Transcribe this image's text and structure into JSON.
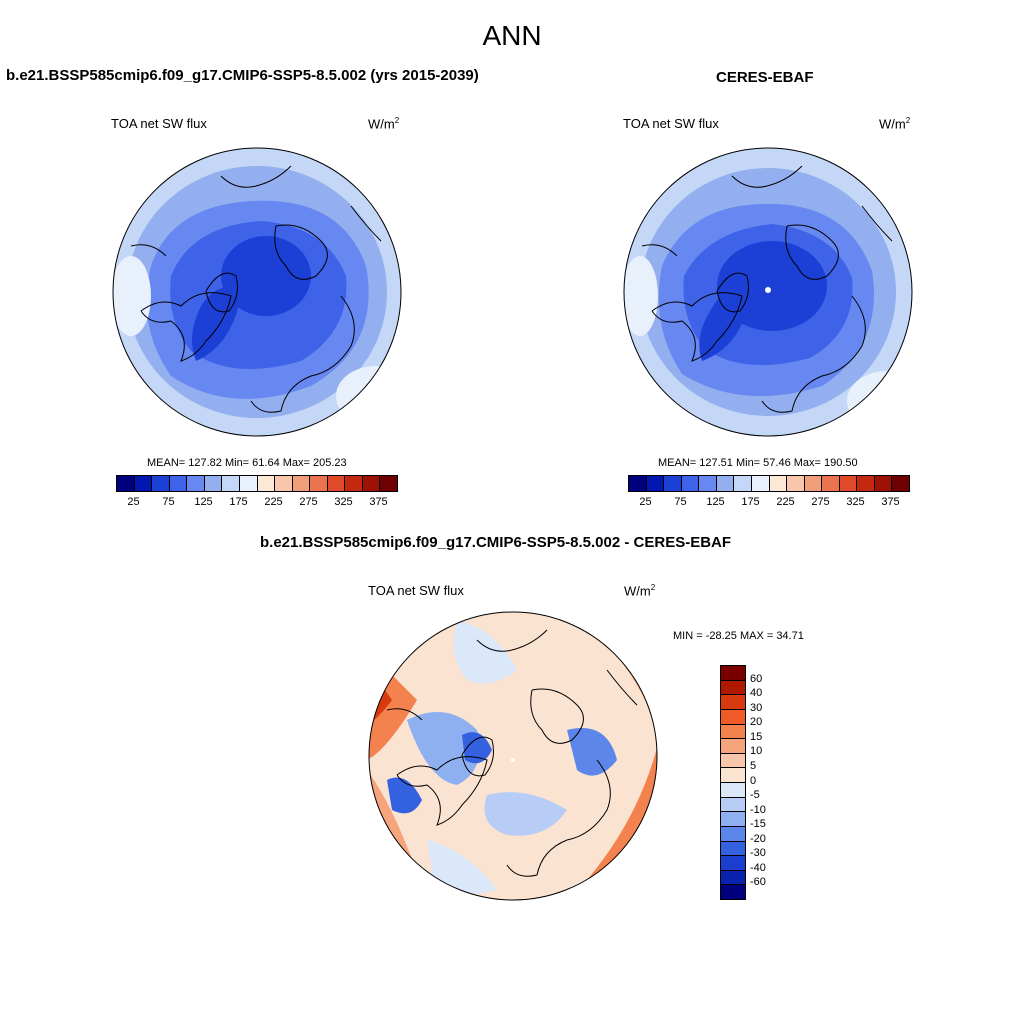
{
  "main_title": "ANN",
  "panels": [
    {
      "title": "b.e21.BSSP585cmip6.f09_g17.CMIP6-SSP5-8.5.002 (yrs 2015-2039)",
      "variable": "TOA net SW flux",
      "units_base": "W/m",
      "units_exp": "2",
      "stats": "MEAN= 127.82  Min=  61.64  Max= 205.23"
    },
    {
      "title": "CERES-EBAF",
      "variable": "TOA net SW flux",
      "units_base": "W/m",
      "units_exp": "2",
      "stats": "MEAN= 127.51  Min=  57.46  Max= 190.50"
    },
    {
      "title": "b.e21.BSSP585cmip6.f09_g17.CMIP6-SSP5-8.5.002 - CERES-EBAF",
      "variable": "TOA net SW flux",
      "units_base": "W/m",
      "units_exp": "2",
      "stats": "MIN = -28.25 MAX =  34.71"
    }
  ],
  "abs_colorbar": {
    "colors": [
      "#00007f",
      "#0018b0",
      "#1c3fd6",
      "#3e62e8",
      "#6688f0",
      "#94afef",
      "#c4d7f7",
      "#e8f0fc",
      "#fde8d6",
      "#f8c6ac",
      "#f29e7a",
      "#ec7350",
      "#e04a28",
      "#c52810",
      "#9e1206",
      "#6e0002"
    ],
    "ticks": [
      "25",
      "75",
      "125",
      "175",
      "225",
      "275",
      "325",
      "375"
    ]
  },
  "diff_colorbar": {
    "colors": [
      "#7a0000",
      "#b01800",
      "#d83a10",
      "#f05a28",
      "#f4824e",
      "#f6a47c",
      "#f8c6aa",
      "#fbe3d2",
      "#dbe8fa",
      "#b8cdf5",
      "#8fb0f0",
      "#5c86ea",
      "#3361e0",
      "#1c3ed0",
      "#0a22b0",
      "#00007f"
    ],
    "ticks": [
      "60",
      "40",
      "30",
      "20",
      "15",
      "10",
      "5",
      "0",
      "-5",
      "-10",
      "-15",
      "-20",
      "-30",
      "-40",
      "-60"
    ]
  },
  "chart_data": [
    {
      "type": "heatmap",
      "title": "b.e21.BSSP585cmip6.f09_g17.CMIP6-SSP5-8.5.002 (yrs 2015-2039)",
      "variable": "TOA net SW flux",
      "units": "W/m2",
      "mean": 127.82,
      "min": 61.64,
      "max": 205.23,
      "levels": [
        25,
        50,
        75,
        100,
        125,
        150,
        175,
        200,
        225,
        250,
        275,
        300,
        325,
        350,
        375
      ]
    },
    {
      "type": "heatmap",
      "title": "CERES-EBAF",
      "variable": "TOA net SW flux",
      "units": "W/m2",
      "mean": 127.51,
      "min": 57.46,
      "max": 190.5,
      "levels": [
        25,
        50,
        75,
        100,
        125,
        150,
        175,
        200,
        225,
        250,
        275,
        300,
        325,
        350,
        375
      ]
    },
    {
      "type": "heatmap",
      "title": "b.e21.BSSP585cmip6.f09_g17.CMIP6-SSP5-8.5.002 - CERES-EBAF",
      "variable": "TOA net SW flux",
      "units": "W/m2",
      "min": -28.25,
      "max": 34.71,
      "levels": [
        -60,
        -40,
        -30,
        -20,
        -15,
        -10,
        -5,
        0,
        5,
        10,
        15,
        20,
        30,
        40,
        60
      ]
    }
  ]
}
